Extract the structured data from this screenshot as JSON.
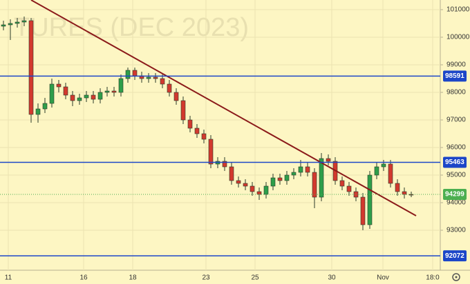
{
  "chart_data": {
    "type": "candlestick",
    "watermark": "TURES (DEC 2023)",
    "x": [
      0,
      1,
      2,
      3,
      4,
      5,
      6,
      7,
      8,
      9,
      10,
      11,
      12,
      13,
      14,
      15,
      16,
      17,
      18,
      19,
      20,
      21,
      22,
      23,
      24,
      25,
      26,
      27,
      28,
      29,
      30,
      31,
      32,
      33,
      34,
      35,
      36,
      37,
      38,
      39,
      40,
      41,
      42,
      43,
      44,
      45,
      46,
      47,
      48,
      49,
      50,
      51,
      52,
      53,
      54,
      55,
      56,
      57,
      58,
      59
    ],
    "open": [
      100400,
      100450,
      100500,
      100550,
      100600,
      97200,
      97400,
      97600,
      98300,
      98200,
      97900,
      97700,
      97800,
      97900,
      97750,
      98000,
      98050,
      98000,
      98500,
      98800,
      98600,
      98500,
      98550,
      98500,
      98300,
      98000,
      97700,
      97000,
      96700,
      96500,
      96300,
      95400,
      95500,
      95300,
      94800,
      94700,
      94600,
      94400,
      94300,
      94600,
      94900,
      94800,
      95000,
      95100,
      95300,
      95100,
      94200,
      95600,
      95500,
      94800,
      94600,
      94400,
      94200,
      93200,
      95000,
      95300,
      95400,
      94700,
      94400,
      94300
    ],
    "high": [
      100600,
      100650,
      100700,
      100750,
      100700,
      97600,
      97800,
      98500,
      98450,
      98350,
      98050,
      97950,
      98050,
      98050,
      98150,
      98200,
      98200,
      98650,
      98900,
      98900,
      98750,
      98700,
      98700,
      98650,
      98450,
      98150,
      97850,
      97150,
      96850,
      96650,
      96450,
      95650,
      95650,
      95450,
      94950,
      94850,
      94750,
      94550,
      94750,
      95050,
      95050,
      95150,
      95250,
      95550,
      95450,
      95250,
      95800,
      95750,
      95650,
      94950,
      94750,
      94550,
      94350,
      95150,
      95450,
      95550,
      95550,
      94850,
      94550,
      94400
    ],
    "low": [
      100250,
      99900,
      100350,
      100400,
      96900,
      96900,
      97250,
      97450,
      98000,
      97750,
      97500,
      97550,
      97650,
      97600,
      97600,
      97850,
      97850,
      97850,
      98350,
      98450,
      98350,
      98350,
      98350,
      98150,
      97850,
      97550,
      96850,
      96550,
      96350,
      96150,
      95250,
      95250,
      95150,
      94650,
      94550,
      94450,
      94250,
      94100,
      94150,
      94450,
      94650,
      94650,
      94850,
      94950,
      94950,
      93800,
      94050,
      95350,
      94650,
      94450,
      94250,
      94050,
      93000,
      93050,
      94850,
      95150,
      94550,
      94250,
      94150,
      94200
    ],
    "close": [
      100450,
      100500,
      100550,
      100600,
      97200,
      97400,
      97600,
      98300,
      98200,
      97900,
      97700,
      97800,
      97900,
      97750,
      98000,
      98050,
      98000,
      98500,
      98800,
      98600,
      98500,
      98550,
      98500,
      98300,
      98000,
      97700,
      97000,
      96700,
      96500,
      96300,
      95400,
      95500,
      95300,
      94800,
      94700,
      94600,
      94400,
      94300,
      94600,
      94900,
      94800,
      95000,
      95100,
      95300,
      95100,
      94200,
      95600,
      95500,
      94800,
      94600,
      94400,
      94200,
      93200,
      95000,
      95300,
      95400,
      94700,
      94400,
      94300,
      94299
    ],
    "up_color": "#2e9e4a",
    "down_color": "#d2392e",
    "levels": [
      98591,
      95463,
      92072
    ],
    "level_color": "#1c46c8",
    "trendline": {
      "x": [
        4.0,
        59.7
      ],
      "y": [
        101350,
        93525
      ],
      "color": "#8b1a1a"
    },
    "last_color": "#4caf50",
    "xlim": [
      -0.5,
      63.2
    ],
    "ylim": [
      91550,
      101350
    ],
    "yticks": [
      93000,
      94000,
      95000,
      96000,
      97000,
      98000,
      99000,
      100000,
      101000
    ],
    "xticks": [
      {
        "value": 0.7,
        "label": "11"
      },
      {
        "value": 11.6,
        "label": "16"
      },
      {
        "value": 18.7,
        "label": "18"
      },
      {
        "value": 29.3,
        "label": "23"
      },
      {
        "value": 36.4,
        "label": "25"
      },
      {
        "value": 47.5,
        "label": "30"
      },
      {
        "value": 54.9,
        "label": "Nov"
      },
      {
        "value": 62.1,
        "label": "18:0"
      }
    ],
    "grid": true
  }
}
